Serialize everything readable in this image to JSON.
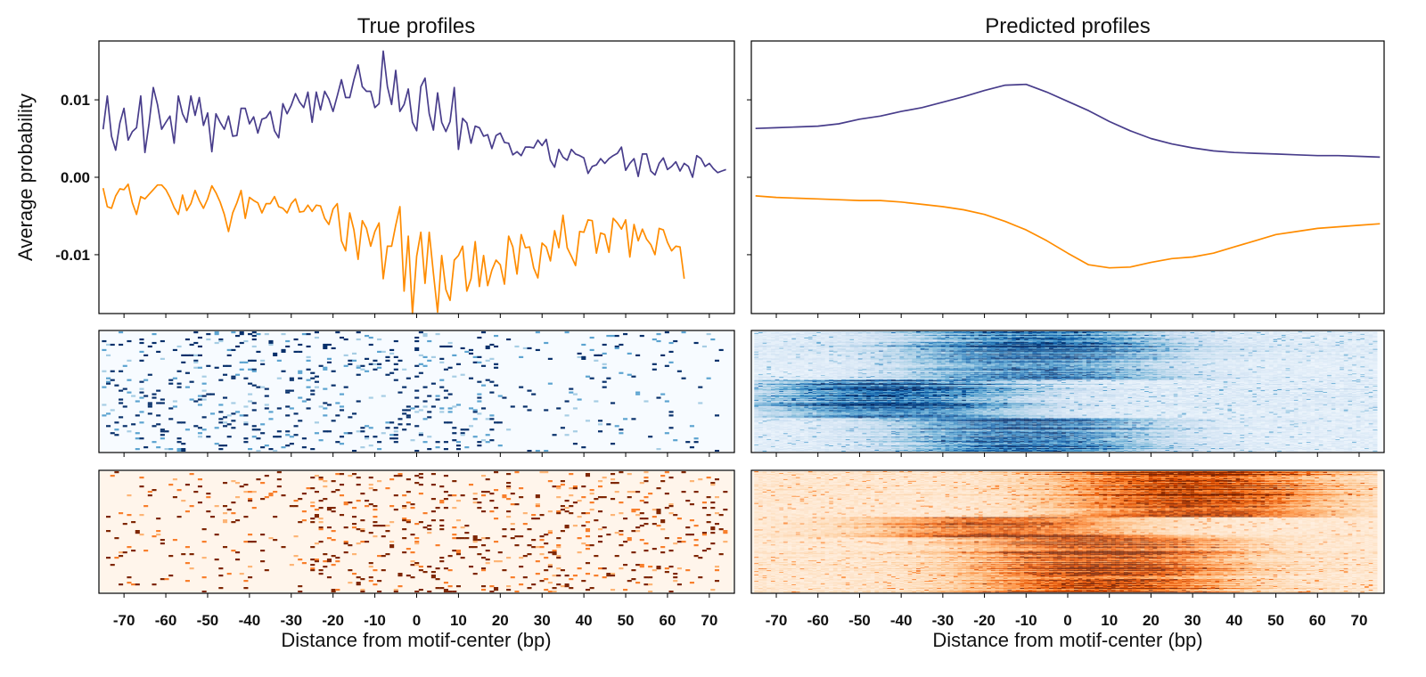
{
  "figure": {
    "titles": [
      "True profiles",
      "Predicted profiles"
    ],
    "ylabel": "Average probability",
    "xlabel": "Distance from motif-center (bp)"
  },
  "chart_data": [
    {
      "type": "line",
      "panel": "true",
      "title": "True profiles",
      "ylabel": "Average probability",
      "xlim": [
        -76,
        76
      ],
      "ylim": [
        -0.0176,
        0.0176
      ],
      "value_scale": 0.001,
      "yticks": [
        0.01,
        0.0,
        -0.01
      ],
      "ytick_labels": [
        "0.01",
        "0.00",
        "-0.01"
      ],
      "xticks": [
        -70,
        -60,
        -50,
        -40,
        -30,
        -20,
        -10,
        0,
        10,
        20,
        30,
        40,
        50,
        60,
        70
      ],
      "grid": false,
      "series": [
        {
          "color": "#483d8b",
          "x_start": -75,
          "x_step": 1,
          "values": [
            6.2,
            10.5,
            5.3,
            3.5,
            7,
            8.9,
            4.8,
            5.9,
            6.4,
            10.5,
            3.2,
            7,
            11.6,
            9.4,
            6.2,
            7.1,
            7.9,
            4.4,
            10.5,
            8.2,
            7.1,
            10.5,
            8,
            10.3,
            6.7,
            8.3,
            3.3,
            8.2,
            7.1,
            6.2,
            7.9,
            5.3,
            5.4,
            8.9,
            8.9,
            6.9,
            7.8,
            5.7,
            7.5,
            7.7,
            8.5,
            6,
            5.1,
            9.5,
            8.2,
            9.3,
            10.8,
            9.7,
            9,
            11,
            7.1,
            11,
            8.7,
            11.1,
            10.1,
            8.5,
            10.5,
            12.6,
            10.3,
            10.3,
            12.6,
            14.5,
            11.7,
            11.1,
            11.1,
            9,
            9.5,
            16.3,
            11.7,
            9.4,
            13.8,
            8.5,
            9.4,
            11.4,
            7.1,
            6,
            11.7,
            12.8,
            8.2,
            6.1,
            10.9,
            7.1,
            5.9,
            7.2,
            11.6,
            3.6,
            7.6,
            7,
            4.4,
            6.6,
            6.4,
            5.3,
            5.5,
            3.7,
            5.4,
            5.7,
            4.5,
            4.4,
            2.9,
            3.3,
            2.8,
            3.9,
            3.9,
            3.8,
            4.8,
            4.1,
            4.9,
            2.2,
            1.3,
            3.6,
            2.6,
            2.2,
            3.6,
            3,
            2.8,
            2.5,
            0.5,
            1.4,
            1.6,
            2.4,
            1.8,
            2.4,
            2.8,
            3.1,
            3.9,
            0.9,
            1.8,
            2.4,
            0.1,
            3,
            3,
            0.8,
            0.3,
            1.8,
            2.5,
            1,
            1.4,
            2,
            0.8,
            1.8,
            1.4,
            0,
            2.8,
            2.4,
            1.4,
            1.8,
            1.1,
            0.6,
            0.8,
            1
          ]
        },
        {
          "color": "#ff8c00",
          "x_start": -75,
          "x_step": 1,
          "values": [
            -1.4,
            -3.8,
            -4,
            -2.4,
            -1.5,
            -1.6,
            -0.9,
            -3.3,
            -4.8,
            -2.5,
            -2.8,
            -2.2,
            -1.6,
            -1,
            -1,
            -1.6,
            -2.6,
            -3.9,
            -4.8,
            -2.3,
            -4.3,
            -3.4,
            -1.7,
            -3,
            -4,
            -2.8,
            -1.1,
            -2,
            -3.2,
            -4.8,
            -7,
            -4.6,
            -3.3,
            -1.7,
            -5.3,
            -2.6,
            -3,
            -3.3,
            -4.6,
            -3.4,
            -3.4,
            -2.5,
            -3.8,
            -4,
            -4.6,
            -3.4,
            -2.8,
            -4.5,
            -4.4,
            -3.6,
            -4.4,
            -3.6,
            -3.7,
            -5.3,
            -6.1,
            -4.1,
            -3.4,
            -8.2,
            -9.5,
            -4.6,
            -6.8,
            -10.6,
            -5.6,
            -6.6,
            -8.9,
            -7,
            -5.9,
            -13.1,
            -8.9,
            -8.9,
            -6.2,
            -3.8,
            -14.7,
            -7.6,
            -17.6,
            -10.2,
            -7.1,
            -13.7,
            -7.1,
            -12.4,
            -17.4,
            -10.1,
            -14.5,
            -15.9,
            -10.7,
            -10.1,
            -8.9,
            -14.7,
            -13.1,
            -8.3,
            -14.1,
            -10.1,
            -14,
            -12,
            -10.7,
            -11.3,
            -13.8,
            -7.6,
            -9,
            -12.5,
            -7.4,
            -9.1,
            -9,
            -11.7,
            -13,
            -8.5,
            -9,
            -10.8,
            -6.9,
            -9.1,
            -4.9,
            -9.1,
            -10.2,
            -11.4,
            -7,
            -7.1,
            -5.5,
            -5.6,
            -9.8,
            -7.2,
            -7.4,
            -9.7,
            -5.3,
            -5.9,
            -6.7,
            -5.5,
            -10.3,
            -6.1,
            -8.2,
            -6.7,
            -8,
            -8.7,
            -10,
            -6.6,
            -6.8,
            -8.4,
            -9.5,
            -8.9,
            -9,
            -13.1
          ]
        }
      ]
    },
    {
      "type": "line",
      "panel": "predicted",
      "title": "Predicted profiles",
      "xlim": [
        -76,
        76
      ],
      "ylim": [
        -0.0176,
        0.0176
      ],
      "value_scale": 0.001,
      "yticks": [
        0.01,
        0.0,
        -0.01
      ],
      "xticks": [
        -70,
        -60,
        -50,
        -40,
        -30,
        -20,
        -10,
        0,
        10,
        20,
        30,
        40,
        50,
        60,
        70
      ],
      "grid": false,
      "series": [
        {
          "color": "#483d8b",
          "x_start": -75,
          "x_step": 5,
          "values": [
            6.3,
            6.4,
            6.5,
            6.6,
            6.9,
            7.5,
            7.9,
            8.5,
            9.0,
            9.7,
            10.4,
            11.2,
            11.9,
            12.0,
            11.0,
            9.8,
            8.6,
            7.2,
            6.0,
            5.0,
            4.3,
            3.8,
            3.4,
            3.2,
            3.1,
            3.0,
            2.9,
            2.8,
            2.8,
            2.7,
            2.6
          ]
        },
        {
          "color": "#ff8c00",
          "x_start": -75,
          "x_step": 5,
          "values": [
            -2.4,
            -2.6,
            -2.7,
            -2.8,
            -2.9,
            -3.0,
            -3.0,
            -3.2,
            -3.5,
            -3.8,
            -4.2,
            -4.8,
            -5.7,
            -6.8,
            -8.2,
            -9.8,
            -11.3,
            -11.7,
            -11.6,
            -11.0,
            -10.5,
            -10.3,
            -9.8,
            -9.0,
            -8.2,
            -7.4,
            -7.0,
            -6.6,
            -6.4,
            -6.2,
            -6.0
          ]
        }
      ]
    },
    {
      "type": "heatmap",
      "panel": "true",
      "colormap": "Blues",
      "rows": 68,
      "cols": 150,
      "x_start": -75,
      "kind": "sparse",
      "dense_until": 20,
      "xticks": [
        -70,
        -60,
        -50,
        -40,
        -30,
        -20,
        -10,
        0,
        10,
        20,
        30,
        40,
        50,
        60,
        70
      ]
    },
    {
      "type": "heatmap",
      "panel": "true",
      "colormap": "Oranges",
      "rows": 68,
      "cols": 150,
      "x_start": -75,
      "kind": "sparse",
      "dense_from": -25,
      "xlabel": "Distance from motif-center (bp)",
      "xticks": [
        -70,
        -60,
        -50,
        -40,
        -30,
        -20,
        -10,
        0,
        10,
        20,
        30,
        40,
        50,
        60,
        70
      ],
      "xtick_labels": [
        "-70",
        "-60",
        "-50",
        "-40",
        "-30",
        "-20",
        "-10",
        "0",
        "10",
        "20",
        "30",
        "40",
        "50",
        "60",
        "70"
      ]
    },
    {
      "type": "heatmap",
      "panel": "predicted",
      "colormap": "Blues",
      "rows": 137,
      "cols": 150,
      "x_start": -75,
      "kind": "smooth",
      "row_groups": [
        {
          "until": 0.4,
          "center": -8
        },
        {
          "until": 0.72,
          "center": -42
        },
        {
          "until": 1.0,
          "center": -10
        }
      ],
      "xticks": [
        -70,
        -60,
        -50,
        -40,
        -30,
        -20,
        -10,
        0,
        10,
        20,
        30,
        40,
        50,
        60,
        70
      ]
    },
    {
      "type": "heatmap",
      "panel": "predicted",
      "colormap": "Oranges",
      "rows": 137,
      "cols": 150,
      "x_start": -75,
      "kind": "smooth",
      "row_groups": [
        {
          "until": 0.38,
          "center": 30
        },
        {
          "until": 0.55,
          "center": -15
        },
        {
          "until": 1.0,
          "center": 8
        }
      ],
      "xlabel": "Distance from motif-center (bp)",
      "xticks": [
        -70,
        -60,
        -50,
        -40,
        -30,
        -20,
        -10,
        0,
        10,
        20,
        30,
        40,
        50,
        60,
        70
      ],
      "xtick_labels": [
        "-70",
        "-60",
        "-50",
        "-40",
        "-30",
        "-20",
        "-10",
        "0",
        "10",
        "20",
        "30",
        "40",
        "50",
        "60",
        "70"
      ]
    }
  ],
  "colormaps": {
    "Blues": [
      "#f7fbff",
      "#deebf7",
      "#c6dbef",
      "#9ecae1",
      "#6baed6",
      "#4292c6",
      "#2171b5",
      "#08519c",
      "#08306b"
    ],
    "Oranges": [
      "#fff5eb",
      "#fee6ce",
      "#fdd0a2",
      "#fdae6b",
      "#fd8d3c",
      "#f16913",
      "#d94801",
      "#a63603",
      "#7f2704"
    ]
  }
}
